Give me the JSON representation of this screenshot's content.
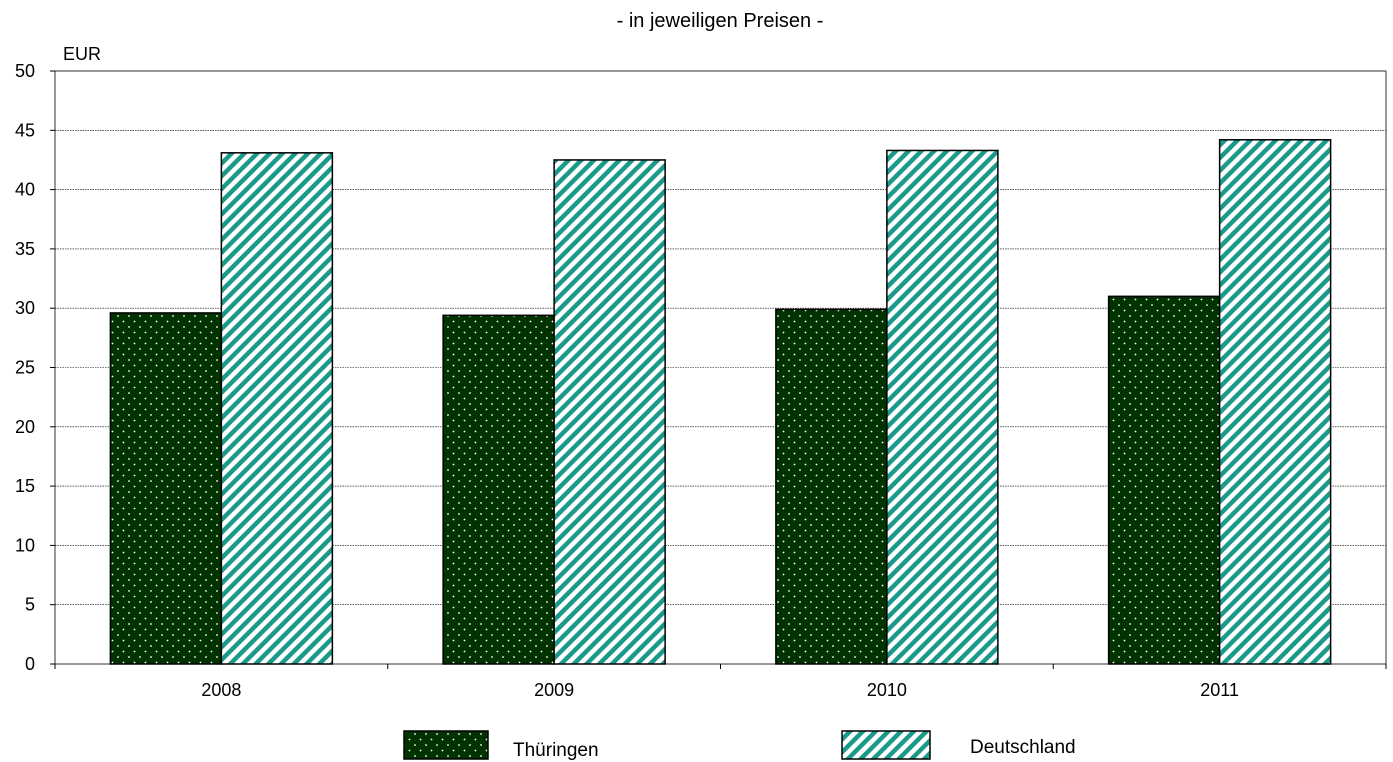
{
  "chart_data": {
    "type": "bar",
    "title": "- in jeweiligen Preisen -",
    "ylabel": "EUR",
    "xlabel": "",
    "categories": [
      "2008",
      "2009",
      "2010",
      "2011"
    ],
    "yticks": [
      "0",
      "5",
      "10",
      "15",
      "20",
      "25",
      "30",
      "35",
      "40",
      "45",
      "50"
    ],
    "ylim": [
      0,
      50
    ],
    "grid": true,
    "legend_position": "bottom",
    "series": [
      {
        "name": "Thüringen",
        "values": [
          29.6,
          29.4,
          29.9,
          31.0
        ],
        "color": "#003300",
        "pattern": "dots"
      },
      {
        "name": "Deutschland",
        "values": [
          43.1,
          42.5,
          43.3,
          44.2
        ],
        "color": "#1a9a8a",
        "pattern": "diagonal-stripes"
      }
    ]
  }
}
